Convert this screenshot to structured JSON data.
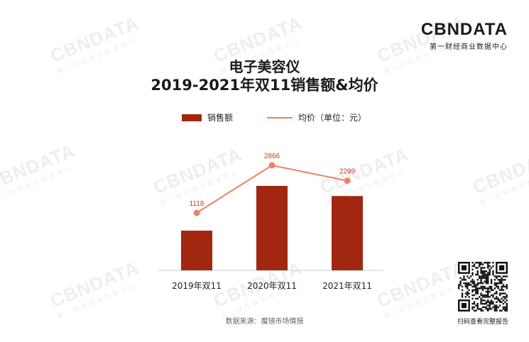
{
  "brand": {
    "logo": "CBNDATA",
    "tagline": "第一财经商业数据中心",
    "watermark_text": "CBNDATA",
    "watermark_sub": "第一财经商业数据中心"
  },
  "title": {
    "line1": "电子美容仪",
    "line2": "2019-2021年双11销售额&均价"
  },
  "legend": {
    "bars": "销售额",
    "line": "均价（单位：元）"
  },
  "colors": {
    "bar": "#a12710",
    "line": "#ef8165",
    "line_label": "#c2401f",
    "axis": "#cccccc"
  },
  "chart_data": {
    "type": "bar",
    "categories": [
      "2019年双11",
      "2020年双11",
      "2021年双11"
    ],
    "series": [
      {
        "name": "销售额",
        "type": "bar",
        "values": [
          0.47,
          1.0,
          0.88
        ]
      },
      {
        "name": "均价（单位：元）",
        "type": "line",
        "values": [
          1118,
          2866,
          2299
        ],
        "labels": [
          "1118",
          "2866",
          "2299"
        ]
      }
    ],
    "title": "电子美容仪 2019-2021年双11销售额&均价",
    "xlabel": "",
    "ylabel": "",
    "grid": false,
    "legend_position": "top"
  },
  "footer": {
    "source": "数据来源：魔镜市场情报",
    "qr_caption": "扫码查看完整报告",
    "qr_icon": "qr-code-icon"
  }
}
